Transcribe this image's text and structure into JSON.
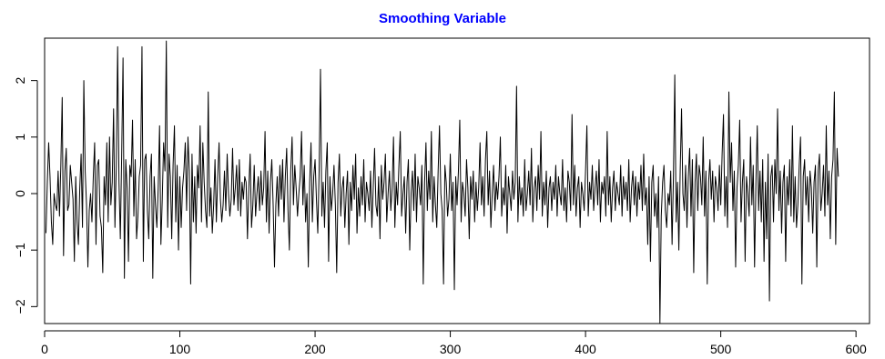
{
  "chart_data": {
    "type": "line",
    "title": "Smoothing Variable",
    "title_color": "#0000ff",
    "line_color": "#000000",
    "xlabel": "",
    "ylabel": "",
    "xlim": [
      0,
      610
    ],
    "ylim": [
      -2.3,
      2.75
    ],
    "grid": false,
    "legend": "none",
    "x_ticks": [
      0,
      100,
      200,
      300,
      400,
      500,
      600
    ],
    "y_ticks": [
      -2,
      -1,
      0,
      1,
      2
    ],
    "x_tick_labels": [
      "0",
      "100",
      "200",
      "300",
      "400",
      "500",
      "600"
    ],
    "y_tick_labels": [
      "−2",
      "−1",
      "0",
      "1",
      "2"
    ],
    "series": [
      {
        "x_start": 1,
        "x_step": 1,
        "values": [
          -0.7,
          0.2,
          0.9,
          0.3,
          -0.5,
          -0.9,
          0.0,
          -0.2,
          -0.3,
          0.4,
          -0.4,
          0.5,
          1.7,
          -1.1,
          0.4,
          0.8,
          -0.3,
          -0.2,
          0.5,
          0.2,
          -0.1,
          -1.2,
          0.3,
          -0.5,
          -0.9,
          0.1,
          0.7,
          -0.6,
          2.0,
          0.4,
          -0.2,
          -1.3,
          -0.3,
          0.0,
          -0.5,
          0.3,
          0.9,
          -0.9,
          0.5,
          0.6,
          -0.4,
          -0.6,
          -1.4,
          0.3,
          -0.2,
          0.9,
          -0.5,
          1.0,
          -0.2,
          0.2,
          1.5,
          -0.6,
          0.5,
          2.6,
          0.2,
          -0.8,
          0.7,
          2.4,
          -1.5,
          0.6,
          0.1,
          -1.2,
          0.5,
          0.3,
          1.3,
          -0.4,
          0.6,
          -0.8,
          -0.4,
          0.3,
          0.5,
          2.6,
          -1.2,
          0.6,
          0.7,
          -0.3,
          -0.8,
          0.3,
          0.7,
          -1.5,
          0.3,
          -0.2,
          -0.6,
          0.1,
          1.2,
          -0.9,
          -0.1,
          0.9,
          0.4,
          2.7,
          -0.6,
          0.7,
          0.3,
          -0.8,
          0.5,
          1.2,
          -0.5,
          0.5,
          -1.0,
          0.3,
          -0.6,
          0.1,
          0.4,
          0.9,
          -0.3,
          1.0,
          0.4,
          -1.6,
          0.7,
          -0.5,
          0.3,
          -0.7,
          0.5,
          0.1,
          1.2,
          -0.5,
          0.9,
          0.2,
          -0.3,
          -0.6,
          1.8,
          -0.4,
          0.1,
          -0.7,
          -0.2,
          0.6,
          -0.5,
          0.3,
          0.9,
          -0.1,
          -0.5,
          -0.2,
          0.4,
          -0.3,
          0.7,
          0.0,
          -0.4,
          -0.1,
          0.8,
          -0.2,
          0.1,
          0.5,
          -0.3,
          0.6,
          -0.4,
          0.2,
          -0.1,
          0.3,
          0.2,
          -0.8,
          0.1,
          0.7,
          -0.6,
          -0.2,
          0.5,
          -0.4,
          0.0,
          0.3,
          -0.3,
          0.4,
          -0.2,
          0.1,
          1.1,
          -0.5,
          0.4,
          -0.7,
          0.2,
          0.6,
          -0.2,
          -1.3,
          -0.2,
          0.3,
          -0.4,
          0.5,
          -0.1,
          0.6,
          -0.5,
          0.3,
          0.8,
          -0.3,
          -1.0,
          0.4,
          1.0,
          -0.2,
          0.5,
          0.1,
          -0.4,
          0.0,
          0.3,
          1.1,
          -0.2,
          0.5,
          -0.5,
          0.0,
          -1.3,
          0.2,
          0.9,
          -0.5,
          0.3,
          0.6,
          -0.1,
          -0.7,
          0.4,
          2.2,
          -0.4,
          0.2,
          -0.6,
          0.4,
          0.9,
          -1.2,
          0.3,
          -0.3,
          0.0,
          0.5,
          -0.2,
          -1.4,
          0.2,
          0.7,
          -0.4,
          0.1,
          0.3,
          -0.6,
          0.0,
          0.4,
          -0.9,
          0.2,
          -0.3,
          0.5,
          -0.1,
          0.7,
          -0.7,
          0.1,
          -0.4,
          0.3,
          -0.2,
          0.6,
          -0.5,
          0.2,
          0.0,
          -0.3,
          0.4,
          -0.6,
          0.1,
          0.8,
          -0.2,
          -0.4,
          0.3,
          -0.8,
          0.5,
          -0.1,
          0.2,
          0.7,
          -0.5,
          0.0,
          0.4,
          -0.3,
          0.1,
          1.0,
          -0.6,
          0.2,
          -0.2,
          0.5,
          1.1,
          -0.4,
          0.0,
          0.3,
          -0.7,
          0.2,
          0.6,
          -1.0,
          0.0,
          0.4,
          -0.3,
          0.7,
          -0.5,
          0.3,
          0.1,
          -0.2,
          0.5,
          -1.6,
          0.2,
          0.9,
          -0.3,
          0.4,
          -0.1,
          1.1,
          -0.5,
          0.3,
          -0.2,
          -0.6,
          0.4,
          1.2,
          0.0,
          -0.3,
          -1.6,
          0.5,
          0.2,
          -0.4,
          -0.1,
          0.7,
          -0.3,
          0.2,
          -1.7,
          0.3,
          -0.2,
          0.4,
          1.3,
          -0.5,
          0.2,
          0.0,
          -0.4,
          0.6,
          0.1,
          -0.8,
          0.3,
          -0.1,
          0.4,
          -0.5,
          0.2,
          -0.3,
          0.1,
          0.9,
          -0.2,
          0.3,
          -0.4,
          0.6,
          1.1,
          -0.2,
          0.4,
          -0.6,
          0.0,
          0.5,
          -0.3,
          0.2,
          -0.1,
          0.3,
          1.0,
          -0.4,
          0.1,
          -0.2,
          0.5,
          -0.7,
          0.3,
          0.0,
          -0.3,
          0.4,
          -0.1,
          0.2,
          1.9,
          -0.5,
          0.3,
          -0.2,
          0.1,
          -0.4,
          0.6,
          -0.3,
          0.0,
          0.4,
          -0.2,
          0.8,
          -0.5,
          0.1,
          0.3,
          -0.3,
          0.5,
          -0.1,
          1.1,
          -0.4,
          0.2,
          -0.2,
          0.4,
          -0.6,
          0.1,
          0.3,
          -0.3,
          0.2,
          -0.1,
          0.5,
          -0.4,
          0.3,
          0.0,
          -0.2,
          0.6,
          -0.3,
          0.1,
          -0.5,
          0.4,
          0.2,
          -0.3,
          1.4,
          -0.2,
          0.5,
          -0.4,
          0.1,
          0.3,
          -0.6,
          0.2,
          0.0,
          -0.3,
          0.4,
          1.2,
          -0.4,
          0.2,
          -0.1,
          0.5,
          -0.3,
          0.1,
          0.4,
          -0.2,
          0.6,
          -0.5,
          0.2,
          0.0,
          0.3,
          -0.4,
          1.1,
          -0.2,
          0.3,
          -0.5,
          0.1,
          0.4,
          -0.3,
          0.2,
          0.0,
          -0.2,
          0.5,
          -0.4,
          0.3,
          -0.1,
          0.2,
          -0.3,
          0.6,
          -0.5,
          0.1,
          0.4,
          -0.2,
          0.3,
          -0.4,
          0.2,
          -0.1,
          0.5,
          -0.3,
          0.7,
          -0.2,
          0.1,
          -0.9,
          0.3,
          -1.2,
          0.2,
          0.5,
          -0.4,
          0.0,
          -0.6,
          0.3,
          -2.3,
          -0.4,
          0.2,
          0.5,
          -0.3,
          -0.6,
          0.0,
          -0.2,
          0.4,
          -0.9,
          0.3,
          2.1,
          -0.5,
          0.2,
          -1.0,
          0.4,
          1.5,
          0.0,
          -0.3,
          0.5,
          -0.6,
          0.3,
          0.8,
          -0.4,
          0.6,
          -1.4,
          0.2,
          0.7,
          -0.3,
          0.5,
          0.3,
          -0.2,
          1.0,
          -0.4,
          0.4,
          -1.6,
          0.2,
          0.6,
          -0.1,
          0.4,
          -0.5,
          0.3,
          0.1,
          -0.3,
          0.5,
          -0.2,
          0.7,
          1.4,
          -0.4,
          0.3,
          -0.6,
          1.8,
          0.2,
          0.9,
          -0.3,
          0.4,
          -1.3,
          0.1,
          0.5,
          1.3,
          -0.5,
          0.2,
          0.6,
          -1.2,
          0.3,
          0.0,
          -0.4,
          1.0,
          -0.2,
          0.5,
          -1.3,
          0.2,
          1.2,
          -0.3,
          0.4,
          -0.5,
          0.6,
          -1.2,
          0.2,
          -0.8,
          0.7,
          -1.9,
          0.3,
          0.5,
          -0.5,
          0.6,
          0.0,
          1.5,
          -0.3,
          0.4,
          -0.7,
          0.2,
          0.5,
          -1.2,
          0.3,
          -0.2,
          0.6,
          -0.4,
          1.2,
          -0.5,
          0.3,
          -0.6,
          -0.2,
          0.5,
          1.0,
          -1.6,
          0.3,
          0.6,
          -0.2,
          0.3,
          -0.5,
          0.4,
          0.1,
          -0.7,
          0.2,
          0.5,
          -1.3,
          0.4,
          0.7,
          -0.3,
          0.0,
          0.5,
          -0.4,
          1.2,
          -0.2,
          0.4,
          -0.8,
          0.3,
          0.6,
          1.8,
          -0.9,
          0.8,
          0.3
        ]
      }
    ]
  }
}
